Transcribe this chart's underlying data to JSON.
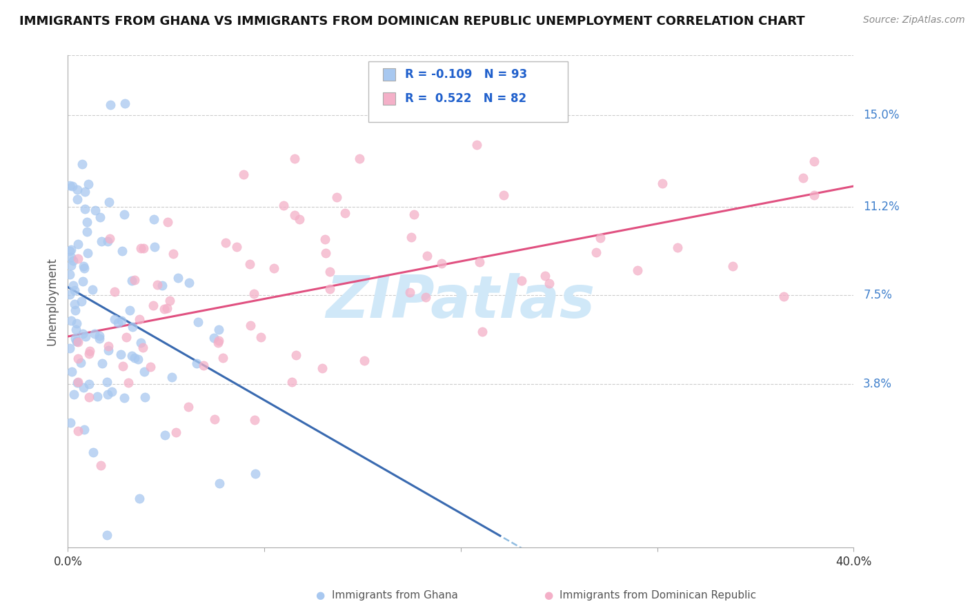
{
  "title": "IMMIGRANTS FROM GHANA VS IMMIGRANTS FROM DOMINICAN REPUBLIC UNEMPLOYMENT CORRELATION CHART",
  "source": "Source: ZipAtlas.com",
  "ylabel": "Unemployment",
  "ytick_labels": [
    "15.0%",
    "11.2%",
    "7.5%",
    "3.8%"
  ],
  "ytick_values": [
    0.15,
    0.112,
    0.075,
    0.038
  ],
  "xlim": [
    0.0,
    0.4
  ],
  "ylim": [
    -0.03,
    0.175
  ],
  "legend_ghana_R": "-0.109",
  "legend_ghana_N": "93",
  "legend_dr_R": "0.522",
  "legend_dr_N": "82",
  "color_ghana": "#a8c8f0",
  "color_dr": "#f4b0c8",
  "color_ghana_line_solid": "#3a6ab0",
  "color_ghana_line_dashed": "#90bce0",
  "color_dr_line": "#e05080",
  "legend_label_ghana": "Immigrants from Ghana",
  "legend_label_dr": "Immigrants from Dominican Republic",
  "random_seed": 42,
  "n_ghana": 93,
  "n_dr": 82,
  "ghana_line_solid_end_x": 0.22,
  "ghana_line_solid_start_x": 0.0,
  "watermark_text": "ZIPatlas",
  "watermark_color": "#d0e8f8",
  "title_fontsize": 13,
  "source_fontsize": 10,
  "ytick_fontsize": 12,
  "ylabel_fontsize": 12
}
